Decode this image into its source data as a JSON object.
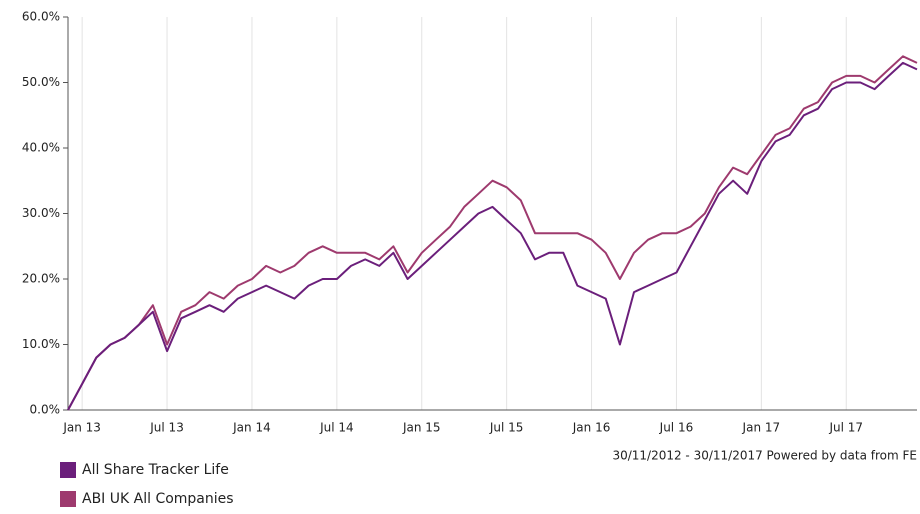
{
  "chart_data": {
    "type": "line",
    "x": [
      "Dec 12",
      "Jan 13",
      "Feb 13",
      "Mar 13",
      "Apr 13",
      "May 13",
      "Jun 13",
      "Jul 13",
      "Aug 13",
      "Sep 13",
      "Oct 13",
      "Nov 13",
      "Dec 13",
      "Jan 14",
      "Feb 14",
      "Mar 14",
      "Apr 14",
      "May 14",
      "Jun 14",
      "Jul 14",
      "Aug 14",
      "Sep 14",
      "Oct 14",
      "Nov 14",
      "Dec 14",
      "Jan 15",
      "Feb 15",
      "Mar 15",
      "Apr 15",
      "May 15",
      "Jun 15",
      "Jul 15",
      "Aug 15",
      "Sep 15",
      "Oct 15",
      "Nov 15",
      "Dec 15",
      "Jan 16",
      "Feb 16",
      "Mar 16",
      "Apr 16",
      "May 16",
      "Jun 16",
      "Jul 16",
      "Aug 16",
      "Sep 16",
      "Oct 16",
      "Nov 16",
      "Dec 16",
      "Jan 17",
      "Feb 17",
      "Mar 17",
      "Apr 17",
      "May 17",
      "Jun 17",
      "Jul 17",
      "Aug 17",
      "Sep 17",
      "Oct 17",
      "Nov 17",
      "Dec 17"
    ],
    "series": [
      {
        "name": "All Share Tracker Life",
        "color": "#6b1f7b",
        "values": [
          0,
          4,
          8,
          10,
          11,
          13,
          15,
          9,
          14,
          15,
          16,
          15,
          17,
          18,
          19,
          18,
          17,
          19,
          20,
          20,
          22,
          23,
          22,
          24,
          20,
          22,
          24,
          26,
          28,
          30,
          31,
          29,
          27,
          23,
          24,
          24,
          19,
          18,
          17,
          10,
          18,
          19,
          20,
          21,
          25,
          29,
          33,
          35,
          33,
          38,
          41,
          42,
          45,
          46,
          49,
          50,
          50,
          49,
          51,
          53,
          52
        ]
      },
      {
        "name": "ABI UK All Companies",
        "color": "#9e3a6e",
        "values": [
          0,
          4,
          8,
          10,
          11,
          13,
          16,
          10,
          15,
          16,
          18,
          17,
          19,
          20,
          22,
          21,
          22,
          24,
          25,
          24,
          24,
          24,
          23,
          25,
          21,
          24,
          26,
          28,
          31,
          33,
          35,
          34,
          32,
          27,
          27,
          27,
          27,
          26,
          24,
          20,
          24,
          26,
          27,
          27,
          28,
          30,
          34,
          37,
          36,
          39,
          42,
          43,
          46,
          47,
          50,
          51,
          51,
          50,
          52,
          54,
          53
        ]
      }
    ],
    "xticks": [
      "Jan 13",
      "Jul 13",
      "Jan 14",
      "Jul 14",
      "Jan 15",
      "Jul 15",
      "Jan 16",
      "Jul 16",
      "Jan 17",
      "Jul 17"
    ],
    "ylim": [
      0,
      60
    ],
    "yticks": [
      {
        "value": 0,
        "label": "0.0%"
      },
      {
        "value": 10,
        "label": "10.0%"
      },
      {
        "value": 20,
        "label": "20.0%"
      },
      {
        "value": 30,
        "label": "30.0%"
      },
      {
        "value": 40,
        "label": "40.0%"
      },
      {
        "value": 50,
        "label": "50.0%"
      },
      {
        "value": 60,
        "label": "60.0%"
      }
    ],
    "grid": true,
    "annotation": "30/11/2012 - 30/11/2017 Powered by data from FE"
  }
}
